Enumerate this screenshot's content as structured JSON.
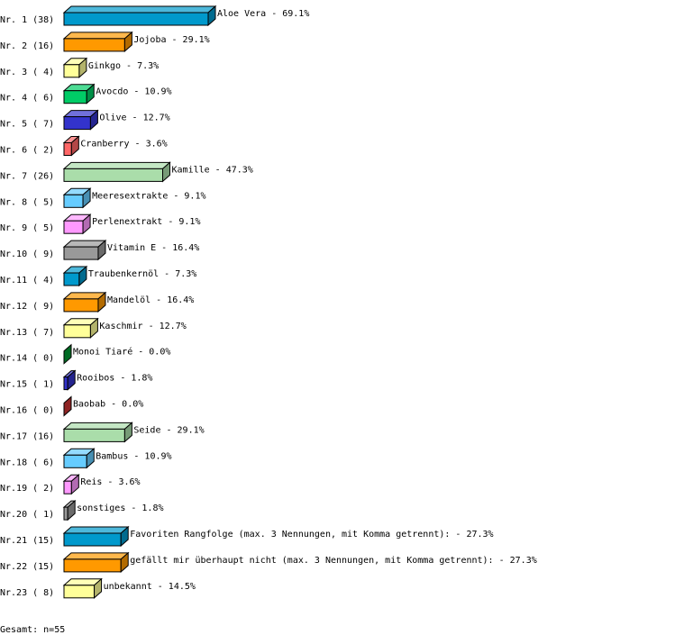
{
  "chart_data": {
    "type": "bar",
    "orientation": "horizontal",
    "style": "3d",
    "xlim": [
      0,
      100
    ],
    "grid": false,
    "categories": [
      "Nr. 1 (38)",
      "Nr. 2 (16)",
      "Nr. 3 ( 4)",
      "Nr. 4 ( 6)",
      "Nr. 5 ( 7)",
      "Nr. 6 ( 2)",
      "Nr. 7 (26)",
      "Nr. 8 ( 5)",
      "Nr. 9 ( 5)",
      "Nr.10 ( 9)",
      "Nr.11 ( 4)",
      "Nr.12 ( 9)",
      "Nr.13 ( 7)",
      "Nr.14 ( 0)",
      "Nr.15 ( 1)",
      "Nr.16 ( 0)",
      "Nr.17 (16)",
      "Nr.18 ( 6)",
      "Nr.19 ( 2)",
      "Nr.20 ( 1)",
      "Nr.21 (15)",
      "Nr.22 (15)",
      "Nr.23 ( 8)"
    ],
    "counts": [
      38,
      16,
      4,
      6,
      7,
      2,
      26,
      5,
      5,
      9,
      4,
      9,
      7,
      0,
      1,
      0,
      16,
      6,
      2,
      1,
      15,
      15,
      8
    ],
    "names": [
      "Aloe Vera",
      "Jojoba",
      "Ginkgo",
      "Avocdo",
      "Olive",
      "Cranberry",
      "Kamille",
      "Meeresextrakte",
      "Perlenextrakt",
      "Vitamin E",
      "Traubenkernöl",
      "Mandelöl",
      "Kaschmir",
      "Monoi Tiaré",
      "Rooibos",
      "Baobab",
      "Seide",
      "Bambus",
      "Reis",
      "sonstiges",
      "Favoriten Rangfolge (max. 3 Nennungen, mit Komma getrennt):",
      "gefällt mir überhaupt nicht (max. 3 Nennungen, mit Komma getrennt):",
      "unbekannt"
    ],
    "values": [
      69.1,
      29.1,
      7.3,
      10.9,
      12.7,
      3.6,
      47.3,
      9.1,
      9.1,
      16.4,
      7.3,
      16.4,
      12.7,
      0.0,
      1.8,
      0.0,
      29.1,
      10.9,
      3.6,
      1.8,
      27.3,
      27.3,
      14.5
    ],
    "value_labels": [
      "69.1%",
      "29.1%",
      "7.3%",
      "10.9%",
      "12.7%",
      "3.6%",
      "47.3%",
      "9.1%",
      "9.1%",
      "16.4%",
      "7.3%",
      "16.4%",
      "12.7%",
      "0.0%",
      "1.8%",
      "0.0%",
      "29.1%",
      "10.9%",
      "3.6%",
      "1.8%",
      "27.3%",
      "27.3%",
      "14.5%"
    ],
    "colors": [
      "#0099cc",
      "#ff9900",
      "#ffff99",
      "#00cc66",
      "#3333cc",
      "#ff6666",
      "#aaddaa",
      "#66ccff",
      "#ff99ff",
      "#999999",
      "#0099cc",
      "#ff9900",
      "#ffff99",
      "#009933",
      "#3333cc",
      "#cc3333",
      "#aaddaa",
      "#66ccff",
      "#ff99ff",
      "#999999",
      "#0099cc",
      "#ff9900",
      "#ffff99"
    ],
    "footer": "Gesamt: n=55"
  }
}
